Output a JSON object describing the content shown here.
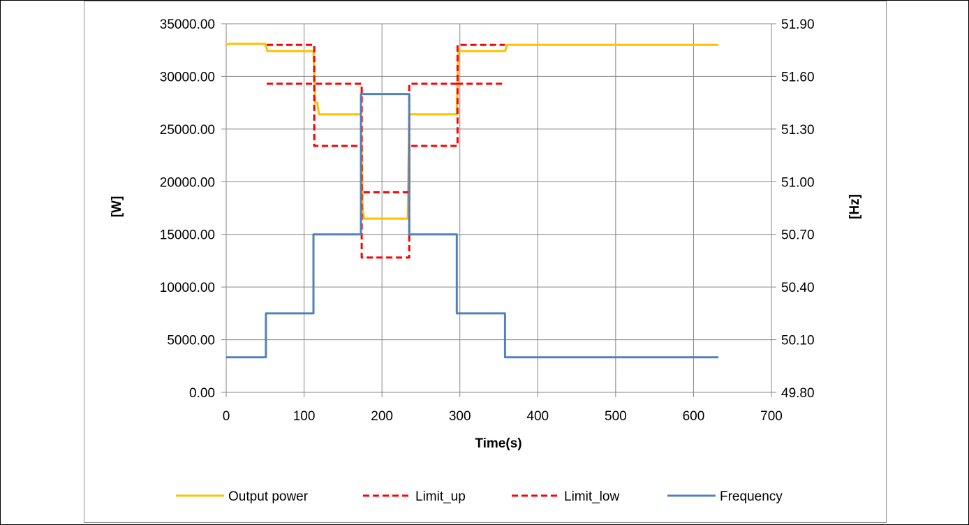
{
  "chart_data": {
    "type": "line",
    "xlabel": "Time(s)",
    "ylabel_left": "[W]",
    "ylabel_right": "[Hz]",
    "xlim": [
      0,
      700
    ],
    "ylim_left": [
      0,
      35000
    ],
    "ylim_right": [
      49.8,
      51.9
    ],
    "x_ticks": [
      "0",
      "100",
      "200",
      "300",
      "400",
      "500",
      "600",
      "700"
    ],
    "y_left_ticks": [
      "0.00",
      "5000.00",
      "10000.00",
      "15000.00",
      "20000.00",
      "25000.00",
      "30000.00",
      "35000.00"
    ],
    "y_right_ticks": [
      "49.80",
      "50.10",
      "50.40",
      "50.70",
      "51.00",
      "51.30",
      "51.60",
      "51.90"
    ],
    "grid": true,
    "legend_position": "bottom",
    "series": [
      {
        "name": "Output power",
        "axis": "left",
        "color": "#FFC000",
        "dash": "solid",
        "points": [
          [
            0,
            33000
          ],
          [
            5,
            33100
          ],
          [
            50,
            33100
          ],
          [
            53,
            32400
          ],
          [
            112,
            32400
          ],
          [
            114,
            27500
          ],
          [
            117,
            27500
          ],
          [
            119,
            26400
          ],
          [
            173,
            26400
          ],
          [
            175,
            17500
          ],
          [
            177,
            16500
          ],
          [
            233,
            16500
          ],
          [
            235,
            26400
          ],
          [
            296,
            26400
          ],
          [
            298,
            32400
          ],
          [
            358,
            32400
          ],
          [
            361,
            33000
          ],
          [
            632,
            33000
          ]
        ]
      },
      {
        "name": "Limit_up",
        "axis": "left",
        "color": "#FF0000",
        "dash": "dashed",
        "points": [
          [
            52,
            33000
          ],
          [
            113,
            33000
          ],
          [
            113,
            29300
          ],
          [
            174,
            29300
          ],
          [
            174,
            19000
          ],
          [
            235,
            19000
          ],
          [
            235,
            29300
          ],
          [
            297,
            29300
          ],
          [
            297,
            33000
          ],
          [
            358,
            33000
          ]
        ]
      },
      {
        "name": "Limit_low",
        "axis": "left",
        "color": "#FF0000",
        "dash": "dashed",
        "points": [
          [
            52,
            29300
          ],
          [
            113,
            29300
          ],
          [
            113,
            23400
          ],
          [
            174,
            23400
          ],
          [
            174,
            12800
          ],
          [
            235,
            12800
          ],
          [
            235,
            23400
          ],
          [
            297,
            23400
          ],
          [
            297,
            29300
          ],
          [
            358,
            29300
          ]
        ]
      },
      {
        "name": "Frequency",
        "axis": "right",
        "color": "#4F81BD",
        "dash": "solid",
        "points": [
          [
            0,
            50.0
          ],
          [
            51,
            50.0
          ],
          [
            51,
            50.25
          ],
          [
            112,
            50.25
          ],
          [
            112,
            50.7
          ],
          [
            173,
            50.7
          ],
          [
            173,
            51.5
          ],
          [
            235,
            51.5
          ],
          [
            235,
            50.7
          ],
          [
            296,
            50.7
          ],
          [
            296,
            50.25
          ],
          [
            358,
            50.25
          ],
          [
            358,
            50.0
          ],
          [
            632,
            50.0
          ]
        ]
      }
    ]
  }
}
